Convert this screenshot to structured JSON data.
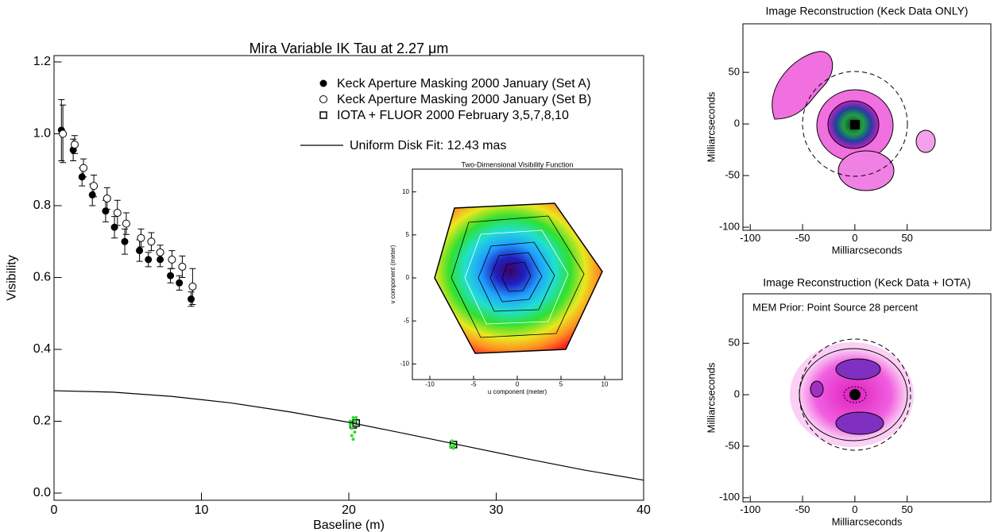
{
  "chart_data": [
    {
      "type": "scatter",
      "title": "Mira Variable IK Tau at 2.27 μm",
      "xlabel": "Baseline (m)",
      "ylabel": "Visibility",
      "xlim": [
        0,
        40
      ],
      "ylim": [
        0,
        1.2
      ],
      "xticks": [
        0,
        10,
        20,
        30,
        40
      ],
      "yticks": [
        {
          "value": 0,
          "label": "0.0"
        },
        0.2,
        0.4,
        0.6,
        0.8,
        {
          "value": 1,
          "label": "1.0"
        },
        1.2
      ],
      "series": [
        {
          "name": "Keck Aperture Masking 2000 January (Set A)",
          "marker": "filled-circle",
          "color": "#000000",
          "x": [
            0.5,
            1.3,
            1.9,
            2.6,
            3.5,
            4.1,
            4.8,
            5.8,
            6.4,
            7.2,
            7.9,
            8.5,
            9.3
          ],
          "values": [
            1.01,
            0.955,
            0.88,
            0.83,
            0.785,
            0.74,
            0.7,
            0.675,
            0.65,
            0.65,
            0.605,
            0.585,
            0.54
          ],
          "errors": [
            0.085,
            0.03,
            0.025,
            0.03,
            0.03,
            0.03,
            0.035,
            0.03,
            0.02,
            0.02,
            0.02,
            0.02,
            0.02
          ]
        },
        {
          "name": "Keck Aperture Masking 2000 January (Set B)",
          "marker": "open-circle",
          "color": "#000000",
          "x": [
            0.6,
            1.4,
            2.0,
            2.7,
            3.6,
            4.3,
            4.9,
            5.9,
            6.6,
            7.2,
            8.0,
            8.7,
            9.4
          ],
          "values": [
            1.0,
            0.97,
            0.905,
            0.855,
            0.82,
            0.78,
            0.75,
            0.71,
            0.7,
            0.67,
            0.65,
            0.63,
            0.575
          ],
          "errors": [
            0.08,
            0.025,
            0.025,
            0.03,
            0.03,
            0.035,
            0.03,
            0.025,
            0.025,
            0.02,
            0.025,
            0.03,
            0.05
          ]
        },
        {
          "name": "IOTA + FLUOR 2000 February 3,5,7,8,10",
          "marker": "open-square",
          "color": "#000000",
          "x": [
            20.3,
            20.5,
            27.1
          ],
          "values": [
            0.19,
            0.195,
            0.135
          ]
        },
        {
          "marker": "dot",
          "color": "#33dd33",
          "x": [
            20.1,
            20.2,
            20.3,
            20.4,
            20.5,
            20.2,
            20.4,
            20.3,
            20.1,
            20.5,
            26.9,
            27.0,
            27.1,
            27.2,
            27.0,
            27.1
          ],
          "values": [
            0.2,
            0.18,
            0.21,
            0.17,
            0.19,
            0.16,
            0.2,
            0.15,
            0.19,
            0.21,
            0.13,
            0.14,
            0.125,
            0.135,
            0.145,
            0.13
          ]
        },
        {
          "name": "Uniform Disk Fit: 12.43 mas",
          "marker": "line",
          "color": "#000000",
          "x": [
            0,
            4,
            8,
            12,
            16,
            20,
            24,
            28,
            32,
            36,
            40
          ],
          "values": [
            0.285,
            0.281,
            0.269,
            0.251,
            0.226,
            0.197,
            0.164,
            0.13,
            0.096,
            0.064,
            0.036
          ]
        }
      ]
    },
    {
      "type": "contour",
      "title": "Two-Dimensional Visibility Function",
      "xlabel": "u component (meter)",
      "ylabel": "v component (meter)",
      "xlim": [
        -12,
        12
      ],
      "ylim": [
        -12,
        12
      ],
      "xticks": [
        -10,
        -5,
        0,
        5,
        10
      ],
      "yticks": [
        -10,
        -5,
        0,
        5,
        10
      ]
    },
    {
      "type": "image",
      "title": "Image Reconstruction (Keck Data ONLY)",
      "xlabel": "Milliarcseconds",
      "ylabel": "Milliarcseconds",
      "xlim": [
        -107,
        130
      ],
      "ylim": [
        -103,
        97
      ],
      "xticks": [
        -100,
        -50,
        0,
        50
      ],
      "yticks": [
        -100,
        -50,
        0,
        50
      ]
    },
    {
      "type": "image",
      "title": "Image Reconstruction (Keck Data + IOTA)",
      "xlabel": "Milliarcseconds",
      "ylabel": "Milliarcseconds",
      "annotation": "MEM Prior: Point Source 28 percent",
      "xlim": [
        -107,
        130
      ],
      "ylim": [
        -104,
        98
      ],
      "xticks": [
        -100,
        -50,
        0,
        50
      ],
      "yticks": [
        -100,
        -50,
        0,
        50
      ]
    }
  ]
}
